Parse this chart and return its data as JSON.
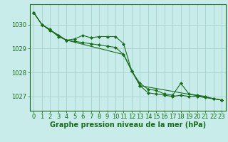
{
  "background_color": "#c8ece9",
  "grid_color": "#aad4d0",
  "line_color": "#1a6b1a",
  "marker_color": "#1a6b1a",
  "xlabel": "Graphe pression niveau de la mer (hPa)",
  "xlabel_fontsize": 7,
  "tick_fontsize": 6,
  "yticks": [
    1027,
    1028,
    1029,
    1030
  ],
  "xlim": [
    -0.5,
    23.5
  ],
  "ylim": [
    1026.4,
    1030.85
  ],
  "series": [
    {
      "x": [
        0,
        1,
        2,
        3,
        4,
        5,
        6,
        7,
        8,
        9,
        10,
        11,
        12,
        13,
        14,
        15,
        16,
        17,
        18,
        19,
        20,
        21,
        22,
        23
      ],
      "y": [
        1030.5,
        1030.0,
        1029.75,
        1029.55,
        1029.35,
        1029.3,
        1029.25,
        1029.2,
        1029.15,
        1029.1,
        1029.05,
        1028.75,
        1028.05,
        1027.45,
        1027.15,
        1027.1,
        1027.05,
        1027.0,
        1027.05,
        1027.0,
        1027.0,
        1026.95,
        1026.9,
        1026.85
      ]
    },
    {
      "x": [
        0,
        1,
        2,
        3,
        4,
        5,
        6,
        7,
        8,
        9,
        10,
        11,
        12,
        13,
        14,
        15,
        16,
        17,
        18,
        19,
        20,
        21,
        22,
        23
      ],
      "y": [
        1030.5,
        1030.0,
        1029.8,
        1029.5,
        1029.35,
        1029.4,
        1029.55,
        1029.45,
        1029.5,
        1029.5,
        1029.5,
        1029.2,
        1028.05,
        1027.55,
        1027.3,
        1027.25,
        1027.1,
        1027.05,
        1027.55,
        1027.1,
        1027.05,
        1027.0,
        1026.9,
        1026.85
      ]
    },
    {
      "x": [
        0,
        1,
        4,
        11,
        13,
        23
      ],
      "y": [
        1030.5,
        1030.0,
        1029.35,
        1028.75,
        1027.45,
        1026.85
      ]
    }
  ]
}
